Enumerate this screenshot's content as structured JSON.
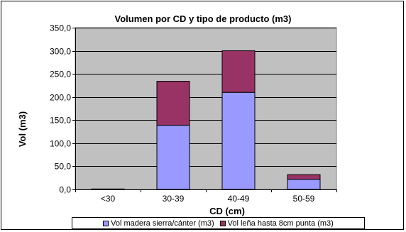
{
  "chart_data": {
    "type": "bar",
    "stacked": true,
    "title": "Volumen por CD y tipo de producto (m3)",
    "xlabel": "CD (cm)",
    "ylabel": "Vol (m3)",
    "categories": [
      "<30",
      "30-39",
      "40-49",
      "50-59"
    ],
    "series": [
      {
        "name": "Vol madera sierra/cánter (m3)",
        "values": [
          0,
          139,
          210,
          22
        ],
        "color": "#9999ff"
      },
      {
        "name": "Vol leña hasta 8cm punta (m3)",
        "values": [
          1,
          95,
          90,
          10
        ],
        "color": "#993366"
      }
    ],
    "ylim": [
      0,
      350
    ],
    "yticks": [
      "0,0",
      "50,0",
      "100,0",
      "150,0",
      "200,0",
      "250,0",
      "300,0",
      "350,0"
    ],
    "grid": true,
    "plot_background": "#c0c0c0",
    "legend_position": "bottom"
  }
}
